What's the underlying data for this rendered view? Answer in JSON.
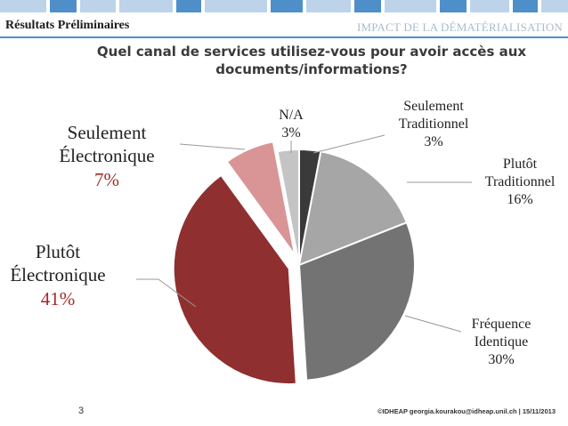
{
  "header": {
    "section_title": "Résultats Préliminaires",
    "right_title": "IMPACT DE LA DÉMATÉRIALISATION"
  },
  "colors": {
    "accent_blue": "#4f8fc9",
    "pale_blue": "#bcd3ea",
    "dark_red": "#8f2f2f",
    "pink": "#d99595"
  },
  "chart_data": {
    "type": "pie",
    "title": "Quel canal de services utilisez-vous pour avoir accès aux documents/informations?",
    "slices": [
      {
        "label": "Seulement Traditionnel",
        "value": 3,
        "pct_text": "3%",
        "color": "#3a3a3a",
        "explode": false
      },
      {
        "label": "Plutôt Traditionnel",
        "value": 16,
        "pct_text": "16%",
        "color": "#a6a6a6",
        "explode": false
      },
      {
        "label": "Fréquence Identique",
        "value": 30,
        "pct_text": "30%",
        "color": "#737373",
        "explode": false
      },
      {
        "label": "Plutôt Électronique",
        "value": 41,
        "pct_text": "41%",
        "color": "#8f2f2f",
        "explode": true
      },
      {
        "label": "Seulement Électronique",
        "value": 7,
        "pct_text": "7%",
        "color": "#d99595",
        "explode": true
      },
      {
        "label": "N/A",
        "value": 3,
        "pct_text": "3%",
        "color": "#c4c4c4",
        "explode": false
      }
    ]
  },
  "labels": {
    "seul_trad_l1": "Seulement",
    "seul_trad_l2": "Traditionnel",
    "seul_trad_pct": "3%",
    "plutot_trad_l1": "Plutôt",
    "plutot_trad_l2": "Traditionnel",
    "plutot_trad_pct": "16%",
    "freq_l1": "Fréquence",
    "freq_l2": "Identique",
    "freq_pct": "30%",
    "plutot_elec_l1": "Plutôt",
    "plutot_elec_l2": "Électronique",
    "plutot_elec_pct": "41%",
    "seul_elec_l1": "Seulement",
    "seul_elec_l2": "Électronique",
    "seul_elec_pct": "7%",
    "na_l1": "N/A",
    "na_pct": "3%"
  },
  "footer": {
    "page_number": "3",
    "credit": "©IDHEAP georgia.kourakou@idheap.unil.ch | 15/11/2013"
  }
}
